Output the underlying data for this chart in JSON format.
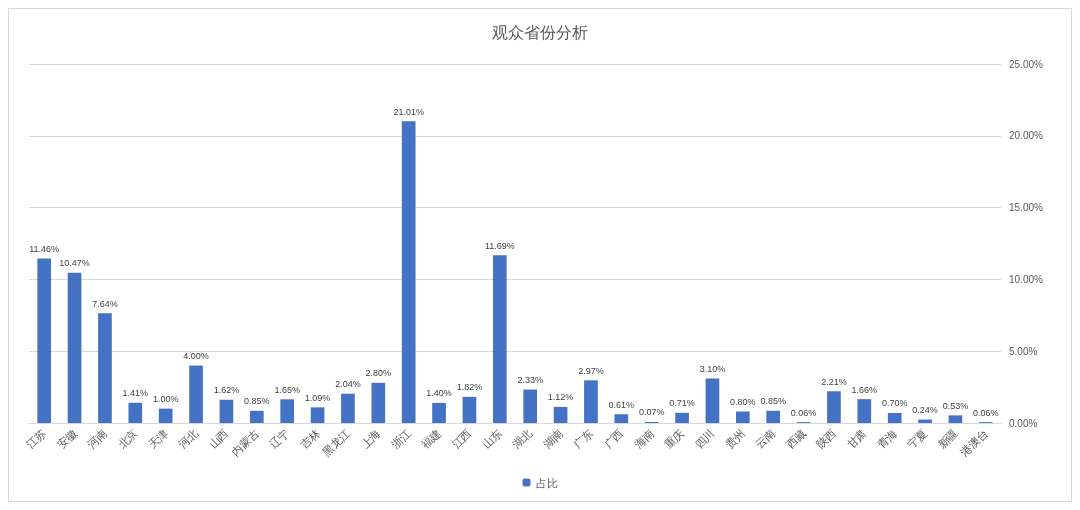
{
  "chart_data": {
    "type": "bar",
    "title": "观众省份分析",
    "categories": [
      "江苏",
      "安徽",
      "河南",
      "北京",
      "天津",
      "河北",
      "山西",
      "内蒙古",
      "辽宁",
      "吉林",
      "黑龙江",
      "上海",
      "浙江",
      "福建",
      "江西",
      "山东",
      "湖北",
      "湖南",
      "广东",
      "广西",
      "海南",
      "重庆",
      "四川",
      "贵州",
      "云南",
      "西藏",
      "陕西",
      "甘肃",
      "青海",
      "宁夏",
      "新疆",
      "港澳台"
    ],
    "series": [
      {
        "name": "占比",
        "color": "#4472c4",
        "values": [
          11.46,
          10.47,
          7.64,
          1.41,
          1.0,
          4.0,
          1.62,
          0.85,
          1.65,
          1.09,
          2.04,
          2.8,
          21.01,
          1.4,
          1.82,
          11.69,
          2.33,
          1.12,
          2.97,
          0.61,
          0.07,
          0.71,
          3.1,
          0.8,
          0.85,
          0.06,
          2.21,
          1.66,
          0.7,
          0.24,
          0.53,
          0.06
        ],
        "value_labels": [
          "11.46%",
          "10.47%",
          "7.64%",
          "1.41%",
          "1.00%",
          "4.00%",
          "1.62%",
          "0.85%",
          "1.65%",
          "1.09%",
          "2.04%",
          "2.80%",
          "21.01%",
          "1.40%",
          "1.82%",
          "11.69%",
          "2.33%",
          "1.12%",
          "2.97%",
          "0.61%",
          "0.07%",
          "0.71%",
          "3.10%",
          "0.80%",
          "0.85%",
          "0.06%",
          "2.21%",
          "1.66%",
          "0.70%",
          "0.24%",
          "0.53%",
          "0.06%"
        ]
      }
    ],
    "ylim": [
      0,
      25
    ],
    "yticks": [
      {
        "value": 0,
        "label": "0.00%"
      },
      {
        "value": 5,
        "label": "5.00%"
      },
      {
        "value": 10,
        "label": "10.00%"
      },
      {
        "value": 15,
        "label": "15.00%"
      },
      {
        "value": 20,
        "label": "20.00%"
      },
      {
        "value": 25,
        "label": "25.00%"
      }
    ],
    "grid": "y",
    "legend": "bottom"
  }
}
